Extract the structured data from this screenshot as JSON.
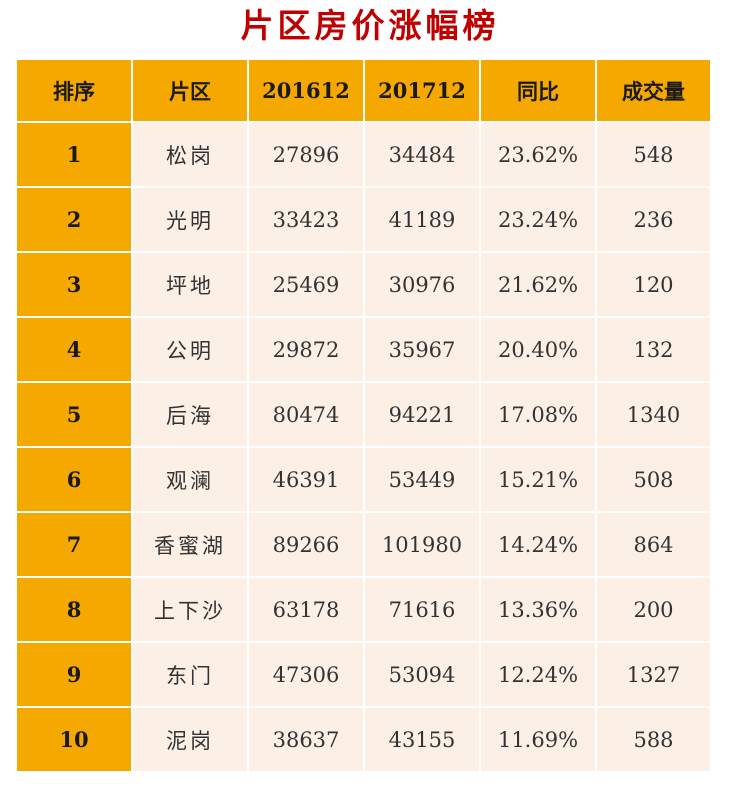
{
  "title": "片区房价涨幅榜",
  "table": {
    "headers": [
      "排序",
      "片区",
      "201612",
      "201712",
      "同比",
      "成交量"
    ],
    "rows": [
      [
        "1",
        "松岗",
        "27896",
        "34484",
        "23.62%",
        "548"
      ],
      [
        "2",
        "光明",
        "33423",
        "41189",
        "23.24%",
        "236"
      ],
      [
        "3",
        "坪地",
        "25469",
        "30976",
        "21.62%",
        "120"
      ],
      [
        "4",
        "公明",
        "29872",
        "35967",
        "20.40%",
        "132"
      ],
      [
        "5",
        "后海",
        "80474",
        "94221",
        "17.08%",
        "1340"
      ],
      [
        "6",
        "观澜",
        "46391",
        "53449",
        "15.21%",
        "508"
      ],
      [
        "7",
        "香蜜湖",
        "89266",
        "101980",
        "14.24%",
        "864"
      ],
      [
        "8",
        "上下沙",
        "63178",
        "71616",
        "13.36%",
        "200"
      ],
      [
        "9",
        "东门",
        "47306",
        "53094",
        "12.24%",
        "1327"
      ],
      [
        "10",
        "泥岗",
        "38637",
        "43155",
        "11.69%",
        "588"
      ]
    ]
  },
  "colors": {
    "title": "#c00000",
    "header_bg": "#f5a800",
    "cell_bg": "#fcefe6"
  }
}
